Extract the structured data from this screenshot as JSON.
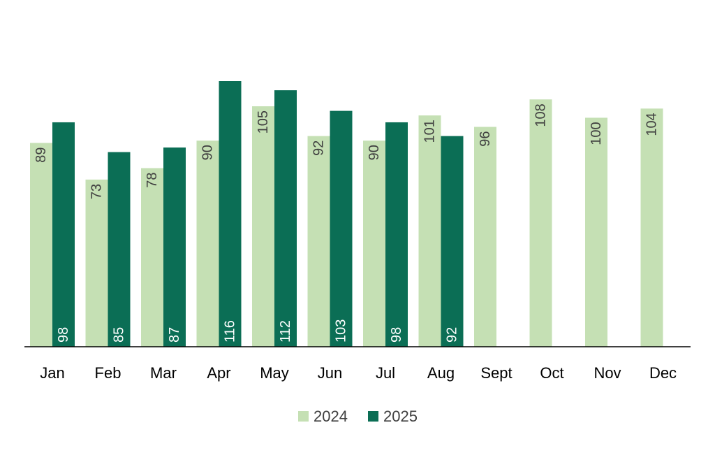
{
  "chart_data": {
    "type": "bar",
    "title": "",
    "xlabel": "",
    "ylabel": "",
    "categories": [
      "Jan",
      "Feb",
      "Mar",
      "Apr",
      "May",
      "Jun",
      "Jul",
      "Aug",
      "Sept",
      "Oct",
      "Nov",
      "Dec"
    ],
    "series": [
      {
        "name": "2024",
        "color": "#c5e0b4",
        "values": [
          89,
          73,
          78,
          90,
          105,
          92,
          90,
          101,
          96,
          108,
          100,
          104
        ]
      },
      {
        "name": "2025",
        "color": "#0b6e55",
        "values": [
          98,
          85,
          87,
          116,
          112,
          103,
          98,
          92,
          null,
          null,
          null,
          null
        ]
      }
    ],
    "ylim": [
      0,
      116
    ],
    "grid": false,
    "legend_position": "bottom",
    "data_labels": "vertical"
  }
}
